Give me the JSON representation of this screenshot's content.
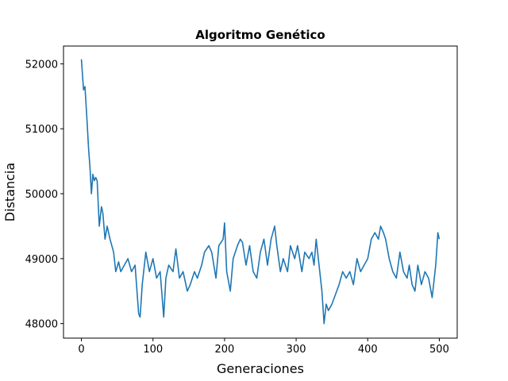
{
  "chart_data": {
    "type": "line",
    "title": "Algoritmo Genético",
    "xlabel": "Generaciones",
    "ylabel": "Distancia",
    "x": [
      0,
      3,
      5,
      8,
      10,
      12,
      14,
      16,
      18,
      20,
      22,
      25,
      28,
      30,
      33,
      36,
      40,
      45,
      48,
      52,
      55,
      60,
      65,
      70,
      75,
      80,
      82,
      85,
      90,
      95,
      100,
      105,
      110,
      115,
      118,
      122,
      128,
      132,
      137,
      142,
      148,
      152,
      158,
      162,
      168,
      172,
      178,
      182,
      188,
      192,
      198,
      200,
      203,
      208,
      212,
      218,
      222,
      225,
      230,
      235,
      240,
      245,
      250,
      255,
      260,
      265,
      270,
      273,
      278,
      282,
      288,
      292,
      298,
      302,
      308,
      312,
      318,
      322,
      325,
      328,
      332,
      336,
      339,
      342,
      345,
      350,
      355,
      360,
      365,
      370,
      375,
      380,
      385,
      390,
      395,
      400,
      405,
      410,
      415,
      418,
      422,
      425,
      430,
      435,
      440,
      445,
      450,
      455,
      458,
      462,
      466,
      470,
      475,
      480,
      485,
      490,
      495,
      498,
      500
    ],
    "series": [
      {
        "name": "Distancia",
        "color": "#1f77b4",
        "values": [
          52070,
          51600,
          51650,
          51100,
          50700,
          50400,
          50000,
          50300,
          50200,
          50250,
          50200,
          49500,
          49800,
          49700,
          49300,
          49500,
          49300,
          49100,
          48800,
          48950,
          48800,
          48900,
          49000,
          48800,
          48900,
          48150,
          48100,
          48600,
          49100,
          48800,
          49000,
          48700,
          48800,
          48100,
          48700,
          48900,
          48800,
          49150,
          48700,
          48800,
          48500,
          48600,
          48800,
          48700,
          48900,
          49100,
          49200,
          49100,
          48700,
          49200,
          49300,
          49550,
          48800,
          48500,
          49000,
          49200,
          49300,
          49250,
          48900,
          49200,
          48800,
          48700,
          49100,
          49300,
          48900,
          49300,
          49500,
          49200,
          48800,
          49000,
          48800,
          49200,
          49000,
          49200,
          48800,
          49100,
          49000,
          49100,
          48900,
          49300,
          48900,
          48500,
          48000,
          48300,
          48200,
          48300,
          48450,
          48600,
          48800,
          48700,
          48800,
          48600,
          49000,
          48800,
          48900,
          49000,
          49300,
          49400,
          49300,
          49500,
          49400,
          49300,
          49000,
          48800,
          48700,
          49100,
          48800,
          48700,
          48900,
          48600,
          48500,
          48900,
          48600,
          48800,
          48700,
          48400,
          48900,
          49400,
          49300
        ]
      }
    ],
    "xlim": [
      -25,
      525
    ],
    "xticks": [
      0,
      100,
      200,
      300,
      400,
      500
    ],
    "ylim": [
      47776,
      52274
    ],
    "yticks": [
      48000,
      49000,
      50000,
      51000,
      52000
    ]
  }
}
